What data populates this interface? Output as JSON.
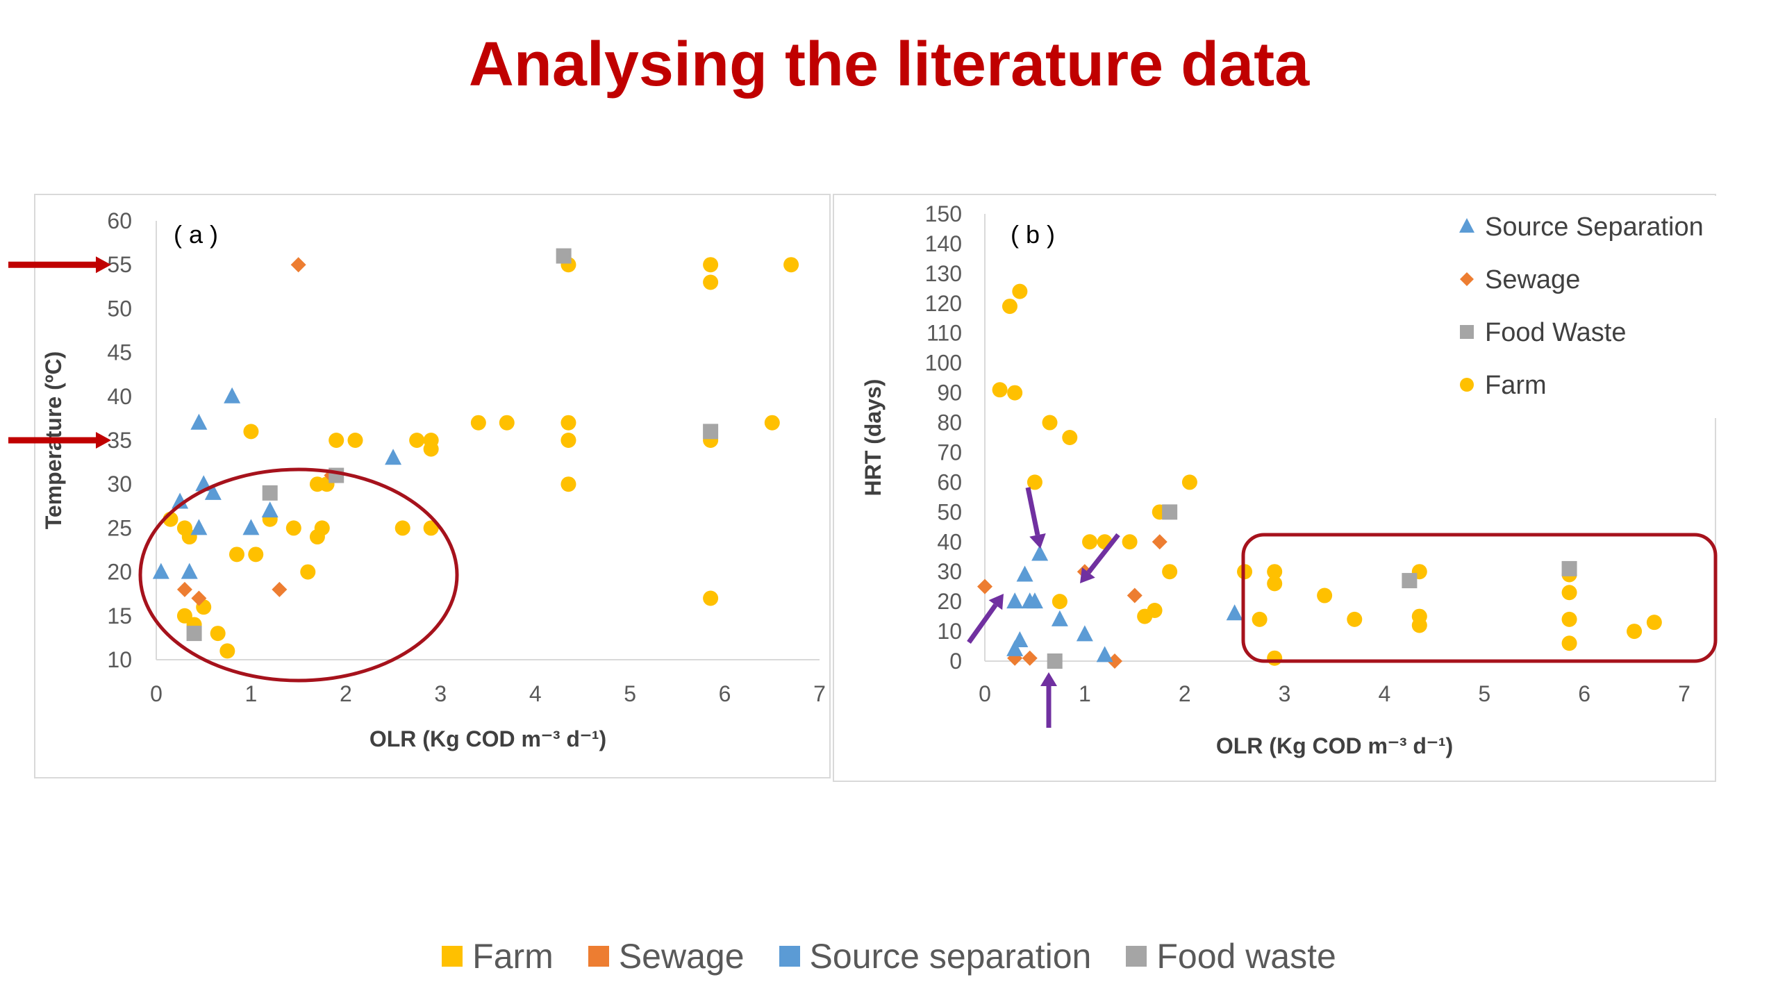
{
  "title": "Analysing the literature data",
  "colors": {
    "farm": "#ffc000",
    "sewage": "#ed7d31",
    "source_separation": "#5b9bd5",
    "food_waste": "#a5a5a5",
    "highlight": "#a6121c",
    "arrow_red": "#c00000",
    "arrow_purple": "#7030a0"
  },
  "legend_b": [
    {
      "key": "source_separation",
      "label": "Source Separation",
      "marker": "triangle"
    },
    {
      "key": "sewage",
      "label": "Sewage",
      "marker": "diamond"
    },
    {
      "key": "food_waste",
      "label": "Food Waste",
      "marker": "square"
    },
    {
      "key": "farm",
      "label": "Farm",
      "marker": "circle"
    }
  ],
  "bottom_legend": [
    {
      "key": "farm",
      "label": "Farm"
    },
    {
      "key": "sewage",
      "label": "Sewage"
    },
    {
      "key": "source_separation",
      "label": "Source separation"
    },
    {
      "key": "food_waste",
      "label": "Food waste"
    }
  ],
  "chart_data": [
    {
      "type": "scatter",
      "panel_label": "( a )",
      "xlabel": "OLR (Kg COD m⁻³ d⁻¹)",
      "ylabel": "Temperature (ºC)",
      "xlim": [
        0,
        7
      ],
      "ylim": [
        10,
        60
      ],
      "xticks": [
        0,
        1,
        2,
        3,
        4,
        5,
        6,
        7
      ],
      "yticks": [
        10,
        15,
        20,
        25,
        30,
        35,
        40,
        45,
        50,
        55,
        60
      ],
      "highlight": "ellipse around low OLR (0-3) and low temperature (10-32)",
      "markers_at_y": [
        55,
        35
      ],
      "series": [
        {
          "key": "farm",
          "points": [
            [
              0.15,
              26
            ],
            [
              0.3,
              25
            ],
            [
              0.35,
              24
            ],
            [
              0.3,
              15
            ],
            [
              0.4,
              14
            ],
            [
              0.5,
              16
            ],
            [
              0.65,
              13
            ],
            [
              0.75,
              11
            ],
            [
              0.85,
              22
            ],
            [
              1.05,
              22
            ],
            [
              1.0,
              36
            ],
            [
              1.2,
              26
            ],
            [
              1.45,
              25
            ],
            [
              1.6,
              20
            ],
            [
              1.7,
              24
            ],
            [
              1.75,
              25
            ],
            [
              1.7,
              30
            ],
            [
              1.8,
              30
            ],
            [
              1.9,
              35
            ],
            [
              2.1,
              35
            ],
            [
              2.6,
              25
            ],
            [
              2.75,
              35
            ],
            [
              2.9,
              35
            ],
            [
              2.9,
              34
            ],
            [
              2.9,
              25
            ],
            [
              3.4,
              37
            ],
            [
              3.7,
              37
            ],
            [
              4.35,
              37
            ],
            [
              4.35,
              35
            ],
            [
              4.35,
              30
            ],
            [
              4.35,
              55
            ],
            [
              5.85,
              55
            ],
            [
              5.85,
              53
            ],
            [
              5.85,
              35
            ],
            [
              5.85,
              17
            ],
            [
              6.5,
              37
            ],
            [
              6.7,
              55
            ]
          ]
        },
        {
          "key": "sewage",
          "points": [
            [
              0.3,
              18
            ],
            [
              0.45,
              17
            ],
            [
              1.3,
              18
            ],
            [
              1.5,
              55
            ],
            [
              1.85,
              31
            ]
          ]
        },
        {
          "key": "source_separation",
          "points": [
            [
              0.05,
              20
            ],
            [
              0.25,
              28
            ],
            [
              0.35,
              20
            ],
            [
              0.45,
              25
            ],
            [
              0.45,
              37
            ],
            [
              0.5,
              30
            ],
            [
              0.6,
              29
            ],
            [
              0.8,
              40
            ],
            [
              1.0,
              25
            ],
            [
              1.2,
              27
            ],
            [
              2.5,
              33
            ]
          ]
        },
        {
          "key": "food_waste",
          "points": [
            [
              0.4,
              13
            ],
            [
              1.2,
              29
            ],
            [
              1.9,
              31
            ],
            [
              4.3,
              56
            ],
            [
              5.85,
              36
            ]
          ]
        }
      ]
    },
    {
      "type": "scatter",
      "panel_label": "( b )",
      "xlabel": "OLR (Kg COD m⁻³ d⁻¹)",
      "ylabel": "HRT (days)",
      "xlim": [
        0,
        7
      ],
      "ylim": [
        0,
        150
      ],
      "xticks": [
        0,
        1,
        2,
        3,
        4,
        5,
        6,
        7
      ],
      "yticks": [
        0,
        10,
        20,
        30,
        40,
        50,
        60,
        70,
        80,
        90,
        100,
        110,
        120,
        130,
        140,
        150
      ],
      "highlight": "rounded rectangle around OLR 2.6-7 and HRT 0-40",
      "series": [
        {
          "key": "farm",
          "points": [
            [
              0.15,
              91
            ],
            [
              0.3,
              90
            ],
            [
              0.25,
              119
            ],
            [
              0.35,
              124
            ],
            [
              0.5,
              60
            ],
            [
              0.65,
              80
            ],
            [
              0.85,
              75
            ],
            [
              0.75,
              20
            ],
            [
              1.05,
              40
            ],
            [
              1.2,
              40
            ],
            [
              1.45,
              40
            ],
            [
              1.6,
              15
            ],
            [
              1.7,
              17
            ],
            [
              1.75,
              50
            ],
            [
              1.85,
              30
            ],
            [
              2.05,
              60
            ],
            [
              2.6,
              30
            ],
            [
              2.75,
              14
            ],
            [
              2.9,
              30
            ],
            [
              2.9,
              26
            ],
            [
              2.9,
              1
            ],
            [
              3.4,
              22
            ],
            [
              3.7,
              14
            ],
            [
              4.35,
              30
            ],
            [
              4.35,
              15
            ],
            [
              4.35,
              12
            ],
            [
              5.85,
              29
            ],
            [
              5.85,
              23
            ],
            [
              5.85,
              14
            ],
            [
              5.85,
              6
            ],
            [
              6.5,
              10
            ],
            [
              6.7,
              13
            ]
          ]
        },
        {
          "key": "sewage",
          "points": [
            [
              0.0,
              25
            ],
            [
              0.3,
              1
            ],
            [
              0.45,
              1
            ],
            [
              1.0,
              30
            ],
            [
              1.5,
              22
            ],
            [
              1.75,
              40
            ],
            [
              1.3,
              0
            ]
          ]
        },
        {
          "key": "source_separation",
          "points": [
            [
              0.3,
              4
            ],
            [
              0.35,
              7
            ],
            [
              0.3,
              20
            ],
            [
              0.4,
              29
            ],
            [
              0.45,
              20
            ],
            [
              0.5,
              20
            ],
            [
              0.55,
              36
            ],
            [
              0.75,
              14
            ],
            [
              1.0,
              9
            ],
            [
              1.2,
              2
            ],
            [
              2.5,
              16
            ]
          ]
        },
        {
          "key": "food_waste",
          "points": [
            [
              0.7,
              0
            ],
            [
              1.85,
              50
            ],
            [
              4.25,
              27
            ],
            [
              5.85,
              31
            ]
          ]
        }
      ]
    }
  ]
}
